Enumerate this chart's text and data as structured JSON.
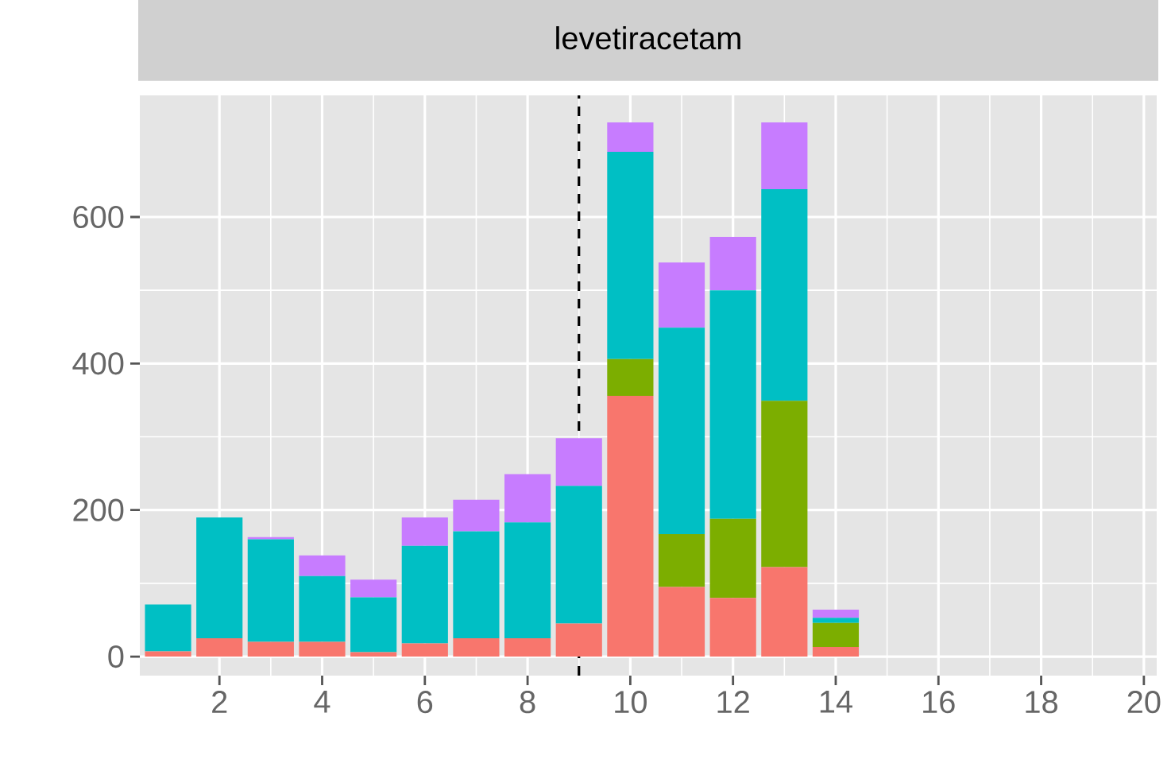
{
  "chart_data": {
    "type": "bar",
    "title": "levetiracetam",
    "stacked": true,
    "x": [
      1,
      2,
      3,
      4,
      5,
      6,
      7,
      8,
      9,
      10,
      11,
      12,
      13,
      14
    ],
    "series": [
      {
        "color": "#f8766d",
        "values": [
          7,
          25,
          20,
          20,
          6,
          18,
          25,
          25,
          45,
          356,
          95,
          80,
          122,
          13
        ]
      },
      {
        "color": "#7cae00",
        "values": [
          0,
          0,
          0,
          0,
          0,
          0,
          0,
          0,
          0,
          50,
          72,
          108,
          227,
          33
        ]
      },
      {
        "color": "#00bfc4",
        "values": [
          64,
          165,
          140,
          90,
          75,
          133,
          146,
          158,
          188,
          283,
          282,
          312,
          289,
          7
        ]
      },
      {
        "color": "#c77cff",
        "values": [
          0,
          0,
          3,
          28,
          24,
          39,
          43,
          66,
          65,
          40,
          89,
          73,
          91,
          11
        ]
      }
    ],
    "xlim": [
      0.45,
      20.25
    ],
    "ylim": [
      -26,
      766
    ],
    "xticks": [
      2,
      4,
      6,
      8,
      10,
      12,
      14,
      16,
      18,
      20
    ],
    "yticks": [
      0,
      200,
      400,
      600
    ],
    "grid": true,
    "ref_lines": [
      {
        "axis": "x",
        "value": 9,
        "color": "#000000",
        "line_style": "dashed"
      }
    ]
  }
}
